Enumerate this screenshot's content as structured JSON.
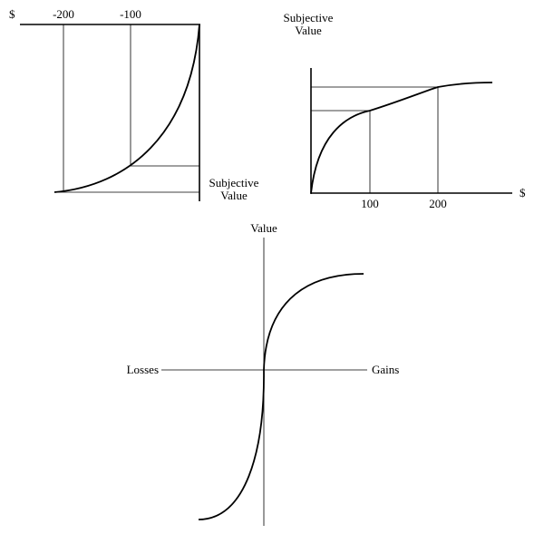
{
  "panels": {
    "losses": {
      "currency_label": "$",
      "ticks": [
        "-200",
        "-100"
      ],
      "ylabel_line1": "Subjective",
      "ylabel_line2": "Value"
    },
    "gains": {
      "ylabel_line1": "Subjective",
      "ylabel_line2": "Value",
      "currency_label": "$",
      "ticks": [
        "100",
        "200"
      ]
    },
    "value_function": {
      "ylabel": "Value",
      "left_label": "Losses",
      "right_label": "Gains"
    }
  }
}
